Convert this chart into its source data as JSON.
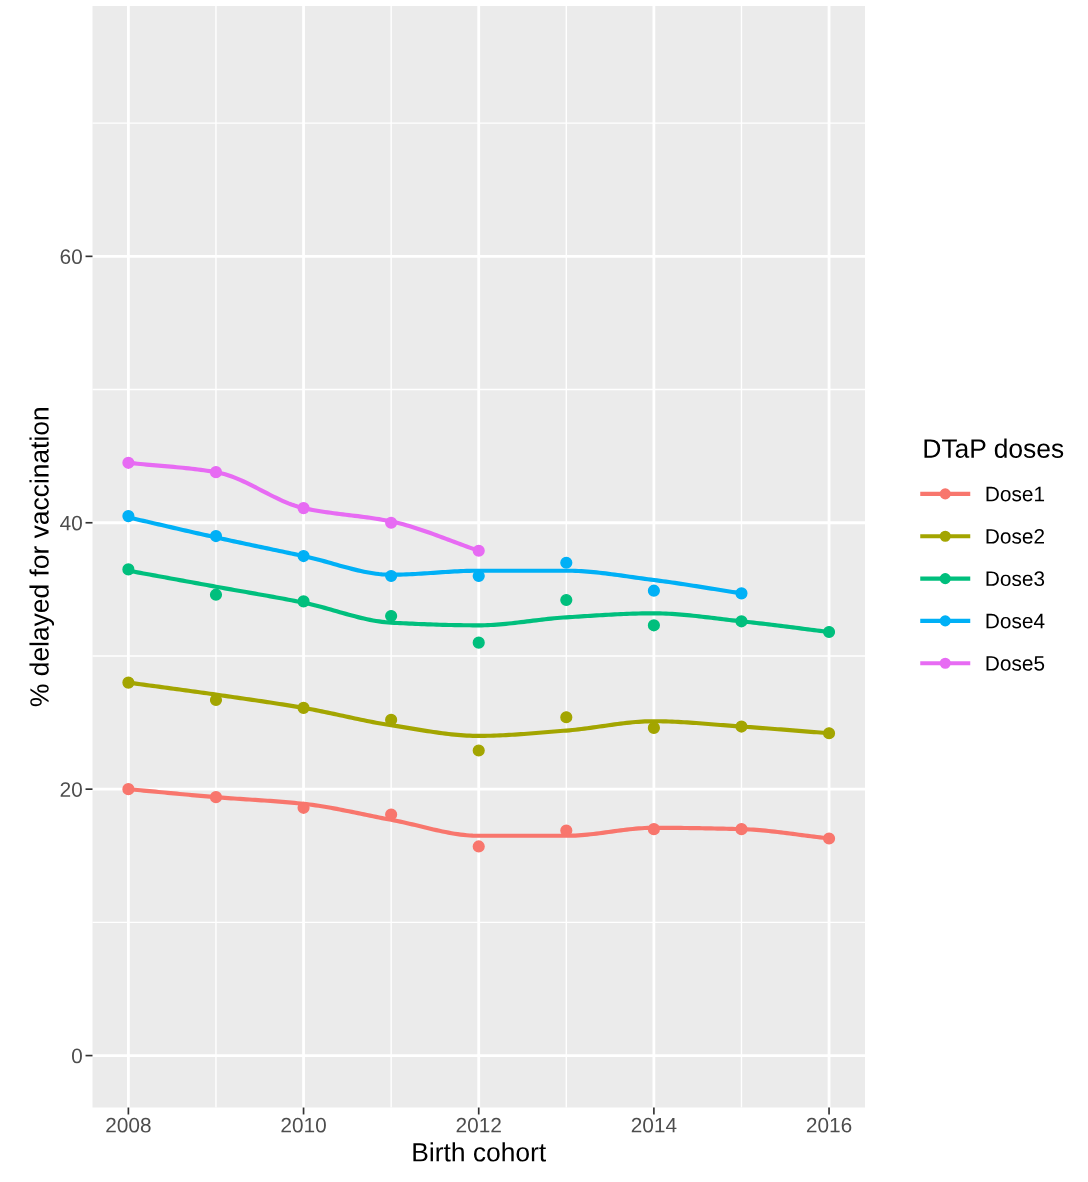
{
  "chart_data": {
    "type": "line",
    "xlabel": "Birth cohort",
    "ylabel": "% delayed for vaccination",
    "legend_title": "DTaP doses",
    "legend": "right",
    "grid": true,
    "line_style": "solid",
    "xlim": [
      2007.59,
      2016.41
    ],
    "ylim": [
      -3.9,
      78.8
    ],
    "xticks": [
      2008,
      {
        "value": 2009,
        "label": null
      },
      2010,
      {
        "value": 2011,
        "label": null
      },
      2012,
      {
        "value": 2013,
        "label": null
      },
      2014,
      {
        "value": 2015,
        "label": null
      },
      2016
    ],
    "yticks": [
      0,
      {
        "value": 10,
        "label": null
      },
      20,
      {
        "value": 30,
        "label": null
      },
      40,
      {
        "value": 50,
        "label": null
      },
      60,
      {
        "value": 70,
        "label": null
      }
    ],
    "series": [
      {
        "type": "scatter",
        "color": "#f8766d",
        "marker": "circle",
        "x": [
          2008,
          2009,
          2010,
          2011,
          2012,
          2013,
          2014,
          2015,
          2016
        ],
        "values": [
          20.0,
          19.4,
          18.6,
          18.1,
          15.7,
          16.9,
          17.0,
          17.0,
          16.3
        ]
      },
      {
        "type": "scatter",
        "color": "#a3a500",
        "marker": "circle",
        "x": [
          2008,
          2009,
          2010,
          2011,
          2012,
          2013,
          2014,
          2015,
          2016
        ],
        "values": [
          28.0,
          26.7,
          26.1,
          25.2,
          22.9,
          25.4,
          24.6,
          24.7,
          24.2
        ]
      },
      {
        "type": "scatter",
        "color": "#00bf7d",
        "marker": "circle",
        "x": [
          2008,
          2009,
          2010,
          2011,
          2012,
          2013,
          2014,
          2015,
          2016
        ],
        "values": [
          36.5,
          34.6,
          34.1,
          33.0,
          31.0,
          34.2,
          32.3,
          32.6,
          31.8
        ]
      },
      {
        "type": "scatter",
        "color": "#00b0f6",
        "marker": "circle",
        "x": [
          2008,
          2009,
          2010,
          2011,
          2012,
          2013,
          2014,
          2015
        ],
        "values": [
          40.5,
          39.0,
          37.5,
          36.0,
          36.0,
          37.0,
          34.9,
          34.7
        ]
      },
      {
        "type": "scatter",
        "color": "#e76bf3",
        "marker": "circle",
        "x": [
          2008,
          2009,
          2010,
          2011,
          2012
        ],
        "values": [
          44.5,
          43.8,
          41.1,
          40.0,
          37.9
        ]
      },
      {
        "name": "Dose1",
        "color": "#f8766d",
        "x": [
          2008,
          2009,
          2010,
          2011,
          2012,
          2013,
          2014,
          2015,
          2016
        ],
        "values": [
          20.0,
          19.4,
          18.9,
          17.7,
          16.5,
          16.5,
          17.1,
          17.0,
          16.3
        ]
      },
      {
        "name": "Dose2",
        "color": "#a3a500",
        "x": [
          2008,
          2009,
          2010,
          2011,
          2012,
          2013,
          2014,
          2015,
          2016
        ],
        "values": [
          28.0,
          27.1,
          26.1,
          24.8,
          24.0,
          24.4,
          25.1,
          24.7,
          24.2
        ]
      },
      {
        "name": "Dose3",
        "color": "#00bf7d",
        "x": [
          2008,
          2009,
          2010,
          2011,
          2012,
          2013,
          2014,
          2015,
          2016
        ],
        "values": [
          36.4,
          35.2,
          34.0,
          32.5,
          32.3,
          32.9,
          33.2,
          32.6,
          31.8
        ]
      },
      {
        "name": "Dose4",
        "color": "#00b0f6",
        "x": [
          2008,
          2009,
          2010,
          2011,
          2012,
          2013,
          2014,
          2015
        ],
        "values": [
          40.4,
          38.9,
          37.5,
          36.1,
          36.4,
          36.4,
          35.7,
          34.7
        ]
      },
      {
        "name": "Dose5",
        "color": "#e76bf3",
        "x": [
          2008,
          2009,
          2010,
          2011,
          2012
        ],
        "values": [
          44.5,
          43.8,
          41.1,
          40.1,
          37.9
        ]
      }
    ]
  }
}
